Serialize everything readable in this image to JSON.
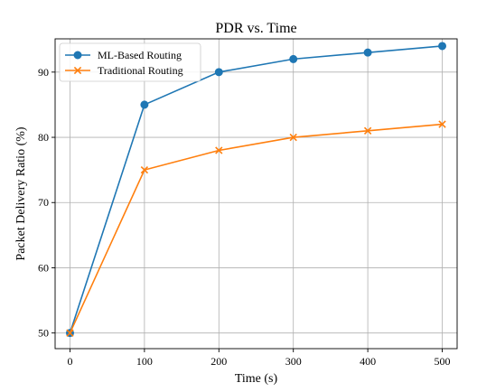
{
  "chart_data": {
    "type": "line",
    "title": "PDR vs. Time",
    "xlabel": "Time (s)",
    "ylabel": "Packet Delivery Ratio (%)",
    "x": [
      0,
      100,
      200,
      300,
      400,
      500
    ],
    "xlim": [
      -20,
      520
    ],
    "ylim": [
      47.6,
      95.1
    ],
    "xticks": [
      0,
      100,
      200,
      300,
      400,
      500
    ],
    "yticks": [
      50,
      60,
      70,
      80,
      90
    ],
    "grid": true,
    "legend_position": "top-left",
    "series": [
      {
        "name": "ML-Based Routing",
        "values": [
          50,
          85,
          90,
          92,
          93,
          94
        ],
        "color": "#1f77b4",
        "marker": "circle"
      },
      {
        "name": "Traditional Routing",
        "values": [
          50,
          75,
          78,
          80,
          81,
          82
        ],
        "color": "#ff7f0e",
        "marker": "x"
      }
    ]
  }
}
